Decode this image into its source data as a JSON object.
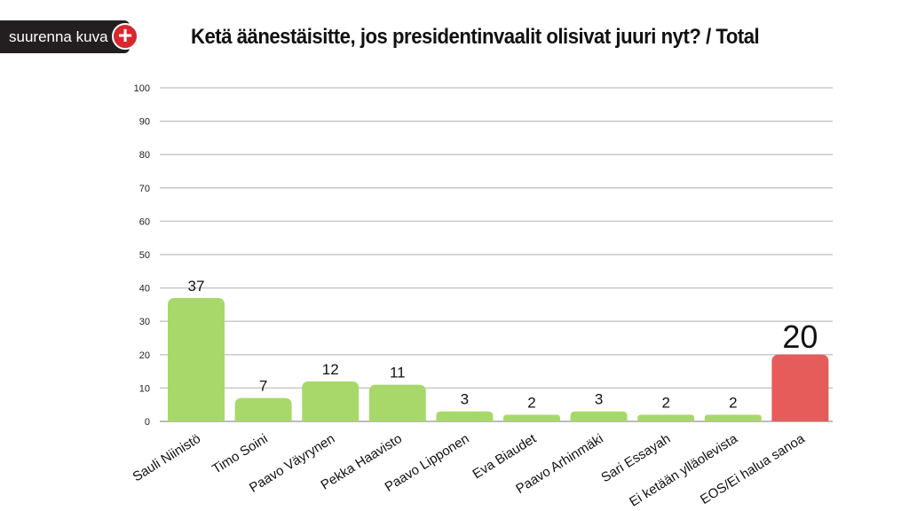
{
  "zoom_button": {
    "label": "suurenna kuva",
    "icon": "plus-icon"
  },
  "chart_data": {
    "type": "bar",
    "title": "Ketä äänestäisitte, jos presidentinvaalit olisivat juuri nyt? / Total",
    "categories": [
      "Sauli Niinistö",
      "Timo Soini",
      "Paavo Väyrynen",
      "Pekka Haavisto",
      "Paavo Lipponen",
      "Eva Biaudet",
      "Paavo Arhinmäki",
      "Sari Essayah",
      "Ei ketään ylläolevista",
      "EOS/Ei halua sanoa"
    ],
    "values": [
      37,
      7,
      12,
      11,
      3,
      2,
      3,
      2,
      2,
      20
    ],
    "colors": [
      "#a8d86a",
      "#a8d86a",
      "#a8d86a",
      "#a8d86a",
      "#a8d86a",
      "#a8d86a",
      "#a8d86a",
      "#a8d86a",
      "#a8d86a",
      "#e55c5a"
    ],
    "ylim": [
      0,
      100
    ],
    "yticks": [
      0,
      10,
      20,
      30,
      40,
      50,
      60,
      70,
      80,
      90,
      100
    ],
    "grid": true,
    "xlabel": "",
    "ylabel": ""
  }
}
